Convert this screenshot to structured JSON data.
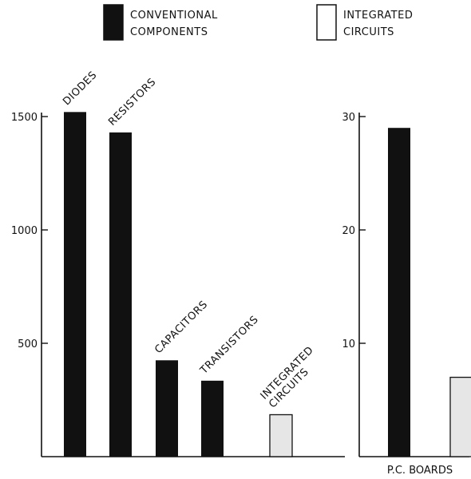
{
  "legend": {
    "items": [
      {
        "lines": [
          "CONVENTIONAL",
          "COMPONENTS"
        ],
        "color": "#111111",
        "fill": "solid"
      },
      {
        "lines": [
          "INTEGRATED",
          "CIRCUITS"
        ],
        "color": "#e6e6e6",
        "fill": "hollow"
      }
    ]
  },
  "chart_data": [
    {
      "type": "bar",
      "categories": [
        "DIODES",
        "RESISTORS",
        "CAPACITORS",
        "TRANSISTORS",
        "INTEGRATED CIRCUITS"
      ],
      "category_labels": [
        [
          "DIODES"
        ],
        [
          "RESISTORS"
        ],
        [
          "CAPACITORS"
        ],
        [
          "TRANSISTORS"
        ],
        [
          "INTEGRATED",
          "CIRCUITS"
        ]
      ],
      "values": [
        1520,
        1430,
        425,
        335,
        185
      ],
      "series_membership": [
        "CONVENTIONAL COMPONENTS",
        "CONVENTIONAL COMPONENTS",
        "CONVENTIONAL COMPONENTS",
        "CONVENTIONAL COMPONENTS",
        "INTEGRATED CIRCUITS"
      ],
      "yticks": [
        500,
        1000,
        1500
      ],
      "ylim": [
        0,
        1500
      ],
      "label_orientation": "rotated -45 degrees"
    },
    {
      "type": "bar",
      "xlabel": "P.C. BOARDS",
      "categories": [
        "CONVENTIONAL COMPONENTS",
        "INTEGRATED CIRCUITS"
      ],
      "values": [
        29,
        7
      ],
      "series_membership": [
        "CONVENTIONAL COMPONENTS",
        "INTEGRATED CIRCUITS"
      ],
      "yticks": [
        10,
        20,
        30
      ],
      "ylim": [
        0,
        30
      ]
    }
  ],
  "colors": {
    "conventional": "#111111",
    "integrated": "#e6e6e6",
    "axis": "#111111"
  }
}
